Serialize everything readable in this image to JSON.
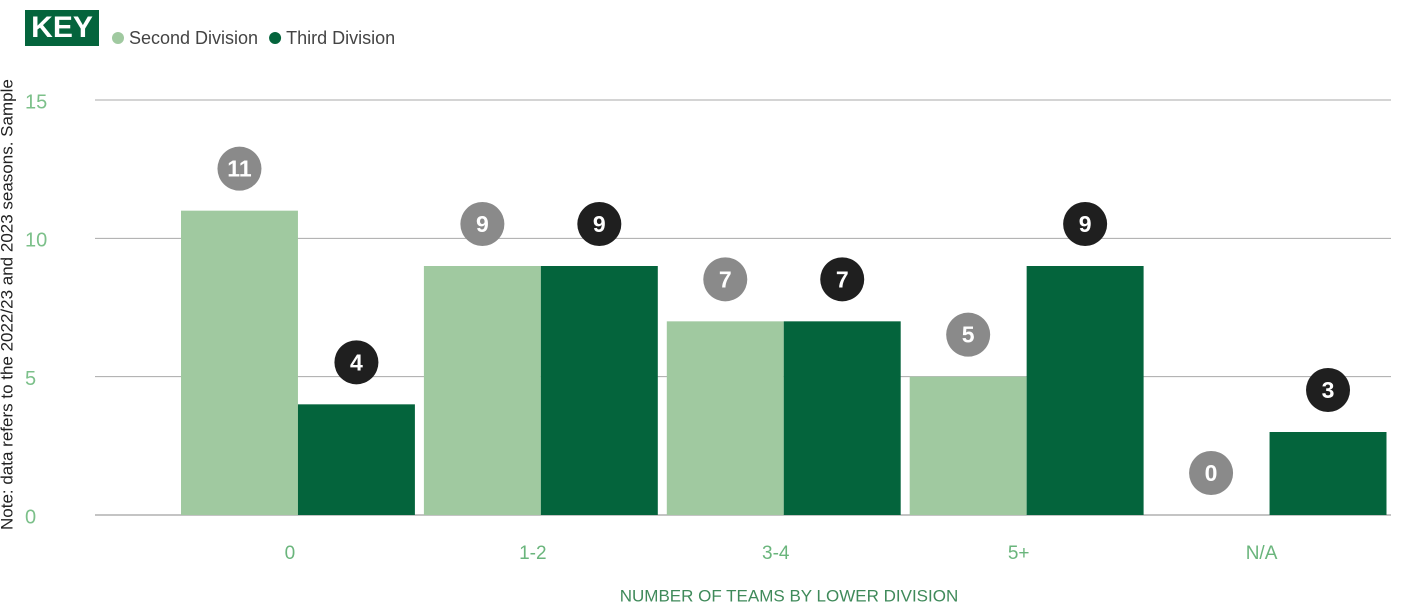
{
  "chart_data": {
    "type": "bar",
    "legend_title": "KEY",
    "note": "Note: data refers to the 2022/23 and 2023 seasons. Sample",
    "x_label": "NUMBER OF TEAMS BY LOWER DIVISION",
    "categories": [
      "0",
      "1-2",
      "3-4",
      "5+",
      "N/A"
    ],
    "series": [
      {
        "name": "Second Division",
        "color": "#a0c9a0",
        "label_color": "#8a8a8a",
        "values": [
          11,
          9,
          7,
          5,
          0
        ]
      },
      {
        "name": "Third Division",
        "color": "#04643c",
        "label_color": "#1f1f1f",
        "values": [
          4,
          9,
          7,
          9,
          3
        ]
      }
    ],
    "ylim": [
      0,
      15
    ],
    "yticks": [
      0,
      5,
      10,
      15
    ],
    "grid": true
  }
}
